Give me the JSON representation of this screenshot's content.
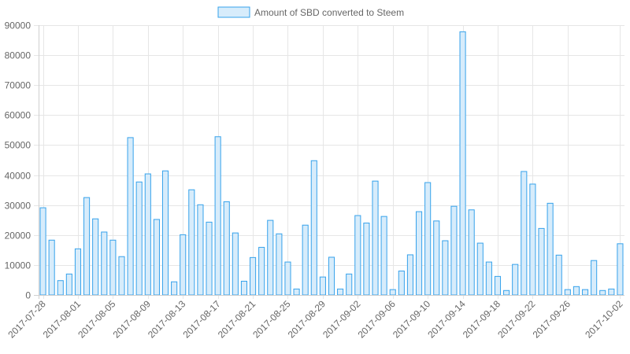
{
  "chart_data": {
    "type": "bar",
    "title": "",
    "xlabel": "",
    "ylabel": "",
    "ylim": [
      0,
      90000
    ],
    "yticks": [
      0,
      10000,
      20000,
      30000,
      40000,
      50000,
      60000,
      70000,
      80000,
      90000
    ],
    "grid": true,
    "legend_position": "top-center",
    "series": [
      {
        "name": "Amount of SBD converted to Steem",
        "fill_color": "#d7ecfb",
        "stroke_color": "#36a2eb",
        "values": [
          29100,
          18300,
          4800,
          7000,
          15400,
          32500,
          25400,
          21000,
          18300,
          12800,
          52500,
          37700,
          40400,
          25200,
          41400,
          4400,
          20100,
          35100,
          30100,
          24300,
          52800,
          31100,
          20700,
          4600,
          12500,
          15900,
          24900,
          20400,
          11000,
          2000,
          23300,
          44800,
          6000,
          12600,
          2000,
          7000,
          26500,
          24000,
          38000,
          26200,
          1800,
          8000,
          13400,
          27800,
          37500,
          24700,
          18100,
          29600,
          87800,
          28400,
          17300,
          11000,
          6200,
          1500,
          10200,
          41200,
          37000,
          22200,
          30600,
          13300,
          1800,
          2800,
          1800,
          11500,
          1500,
          2000,
          17100
        ]
      }
    ],
    "x_tick_labels": [
      "2017-07-28",
      "2017-08-01",
      "2017-08-05",
      "2017-08-09",
      "2017-08-13",
      "2017-08-17",
      "2017-08-21",
      "2017-08-25",
      "2017-08-29",
      "2017-09-02",
      "2017-09-06",
      "2017-09-10",
      "2017-09-14",
      "2017-09-18",
      "2017-09-22",
      "2017-09-26",
      "2017-10-02"
    ],
    "x_tick_indices": [
      0,
      4,
      8,
      12,
      16,
      20,
      24,
      28,
      32,
      36,
      40,
      44,
      48,
      52,
      56,
      60,
      66
    ]
  }
}
